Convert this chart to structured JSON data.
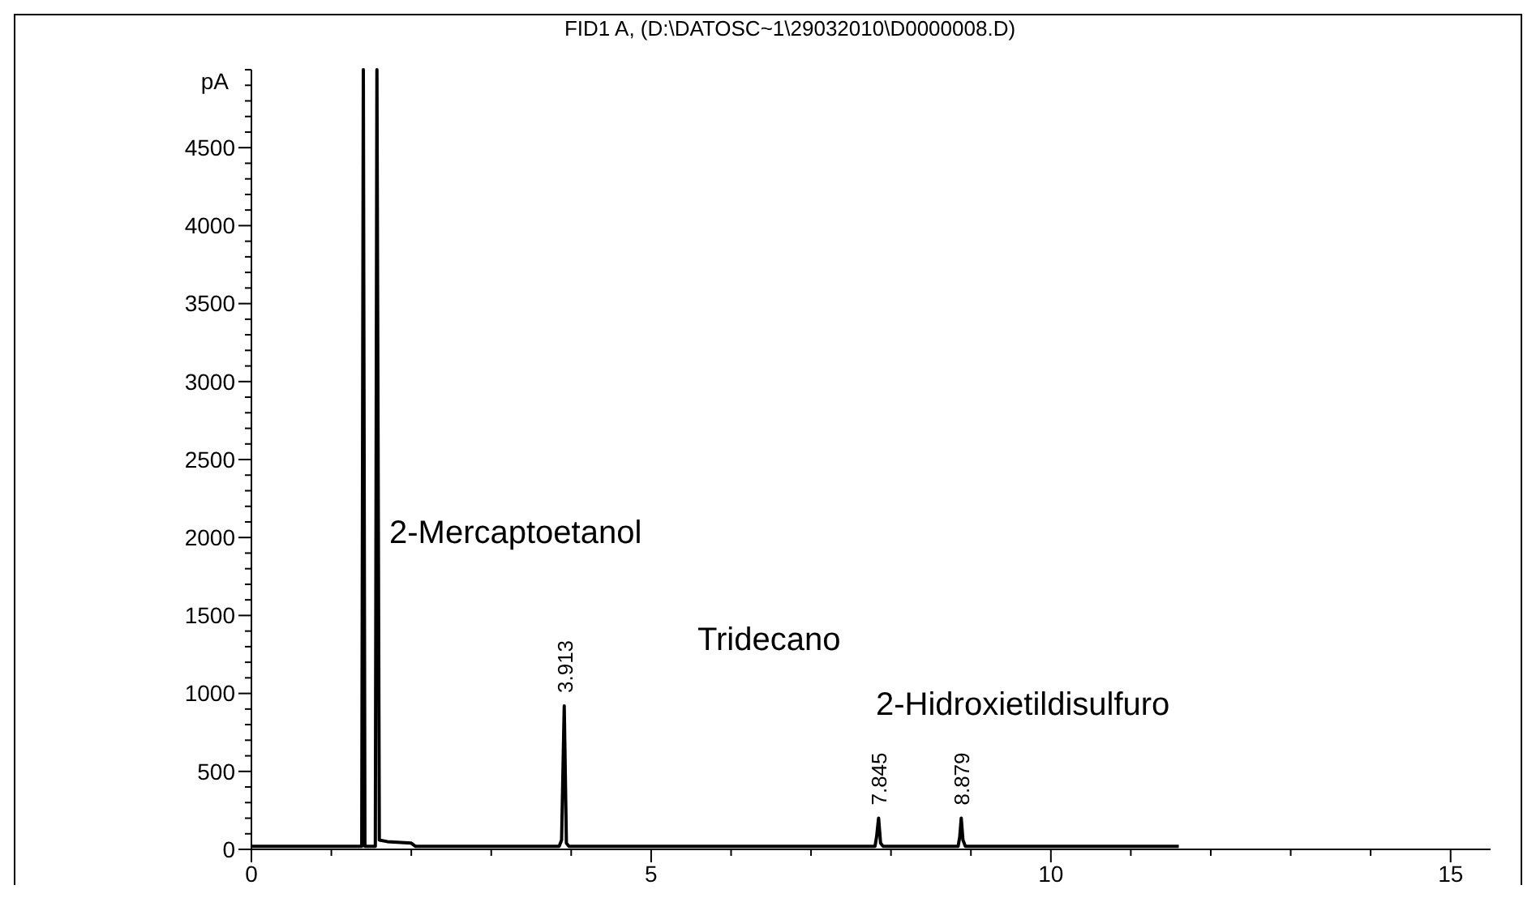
{
  "chart_data": {
    "type": "line",
    "title": "FID1 A, (D:\\DATOSC~1\\29032010\\D0000008.D)",
    "ylabel": "pA",
    "series": [
      {
        "color": "#000000",
        "x": [
          0,
          1.38,
          1.4,
          1.42,
          1.55,
          1.57,
          1.6,
          1.7,
          2.0,
          2.05,
          3.85,
          3.88,
          3.913,
          3.94,
          3.97,
          7.8,
          7.82,
          7.845,
          7.87,
          7.9,
          8.84,
          8.86,
          8.879,
          8.9,
          8.93,
          11.6
        ],
        "values": [
          20,
          20,
          5000,
          20,
          20,
          5000,
          60,
          50,
          40,
          20,
          20,
          60,
          920,
          40,
          20,
          20,
          80,
          200,
          40,
          20,
          20,
          80,
          200,
          60,
          20,
          20
        ]
      }
    ],
    "xlim": [
      0,
      15.5
    ],
    "ylim": [
      0,
      5000
    ],
    "xticks": [
      0,
      {
        "value": 1,
        "label": null
      },
      {
        "value": 2,
        "label": null
      },
      {
        "value": 3,
        "label": null
      },
      {
        "value": 4,
        "label": null
      },
      5,
      {
        "value": 6,
        "label": null
      },
      {
        "value": 7,
        "label": null
      },
      {
        "value": 8,
        "label": null
      },
      {
        "value": 9,
        "label": null
      },
      10,
      {
        "value": 11,
        "label": null
      },
      {
        "value": 12,
        "label": null
      },
      {
        "value": 13,
        "label": null
      },
      {
        "value": 14,
        "label": null
      },
      15
    ],
    "yticks": [
      0,
      {
        "value": 100,
        "label": null
      },
      {
        "value": 200,
        "label": null
      },
      {
        "value": 300,
        "label": null
      },
      {
        "value": 400,
        "label": null
      },
      500,
      {
        "value": 600,
        "label": null
      },
      {
        "value": 700,
        "label": null
      },
      {
        "value": 800,
        "label": null
      },
      {
        "value": 900,
        "label": null
      },
      1000,
      {
        "value": 1100,
        "label": null
      },
      {
        "value": 1200,
        "label": null
      },
      {
        "value": 1300,
        "label": null
      },
      {
        "value": 1400,
        "label": null
      },
      1500,
      {
        "value": 1600,
        "label": null
      },
      {
        "value": 1700,
        "label": null
      },
      {
        "value": 1800,
        "label": null
      },
      {
        "value": 1900,
        "label": null
      },
      2000,
      {
        "value": 2100,
        "label": null
      },
      {
        "value": 2200,
        "label": null
      },
      {
        "value": 2300,
        "label": null
      },
      {
        "value": 2400,
        "label": null
      },
      2500,
      {
        "value": 2600,
        "label": null
      },
      {
        "value": 2700,
        "label": null
      },
      {
        "value": 2800,
        "label": null
      },
      {
        "value": 2900,
        "label": null
      },
      3000,
      {
        "value": 3100,
        "label": null
      },
      {
        "value": 3200,
        "label": null
      },
      {
        "value": 3300,
        "label": null
      },
      {
        "value": 3400,
        "label": null
      },
      3500,
      {
        "value": 3600,
        "label": null
      },
      {
        "value": 3700,
        "label": null
      },
      {
        "value": 3800,
        "label": null
      },
      {
        "value": 3900,
        "label": null
      },
      4000,
      {
        "value": 4100,
        "label": null
      },
      {
        "value": 4200,
        "label": null
      },
      {
        "value": 4300,
        "label": null
      },
      {
        "value": 4400,
        "label": null
      },
      4500,
      {
        "value": 4600,
        "label": null
      },
      {
        "value": 4700,
        "label": null
      },
      {
        "value": 4800,
        "label": null
      },
      {
        "value": 4900,
        "label": null
      },
      {
        "value": 5000,
        "label": null
      }
    ],
    "annotations": [
      {
        "text": "3.913",
        "x": 3.913,
        "y": 920
      },
      {
        "text": "7.845",
        "x": 7.845,
        "y": 200
      },
      {
        "text": "8.879",
        "x": 8.879,
        "y": 200
      },
      "2-Mercaptoetanol",
      "Tridecano",
      "2-Hidroxietildisulfuro"
    ],
    "grid": false,
    "line_style": "solid"
  }
}
